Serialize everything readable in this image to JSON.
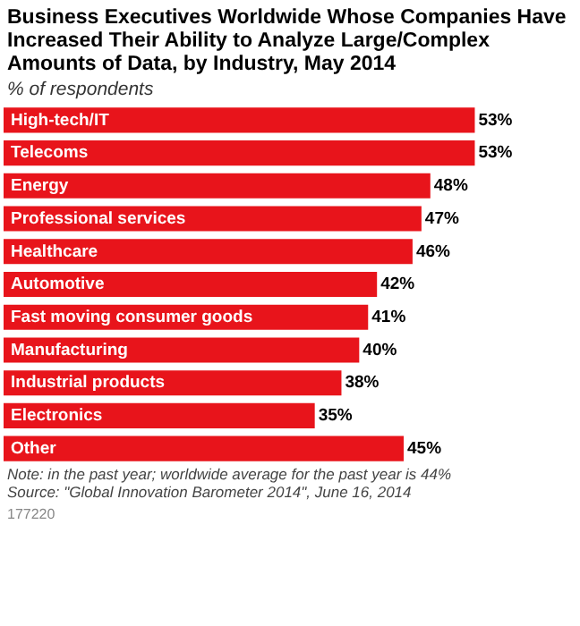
{
  "chart_data": {
    "type": "bar",
    "orientation": "horizontal",
    "title": "Business Executives Worldwide Whose Companies Have Increased Their Ability to Analyze Large/Complex Amounts of Data, by Industry, May 2014",
    "subtitle": "% of respondents",
    "categories": [
      "High-tech/IT",
      "Telecoms",
      "Energy",
      "Professional services",
      "Healthcare",
      "Automotive",
      "Fast moving consumer goods",
      "Manufacturing",
      "Industrial products",
      "Electronics",
      "Other"
    ],
    "values": [
      53,
      53,
      48,
      47,
      46,
      42,
      41,
      40,
      38,
      35,
      45
    ],
    "value_labels": [
      "53%",
      "53%",
      "48%",
      "47%",
      "46%",
      "42%",
      "41%",
      "40%",
      "38%",
      "35%",
      "45%"
    ],
    "color": "#e8141b",
    "legend": false,
    "annotations": [
      "Note: in the past year; worldwide average for the past year is 44%",
      "Source: \"Global Innovation Barometer 2014\", June 16, 2014",
      "177220"
    ]
  }
}
